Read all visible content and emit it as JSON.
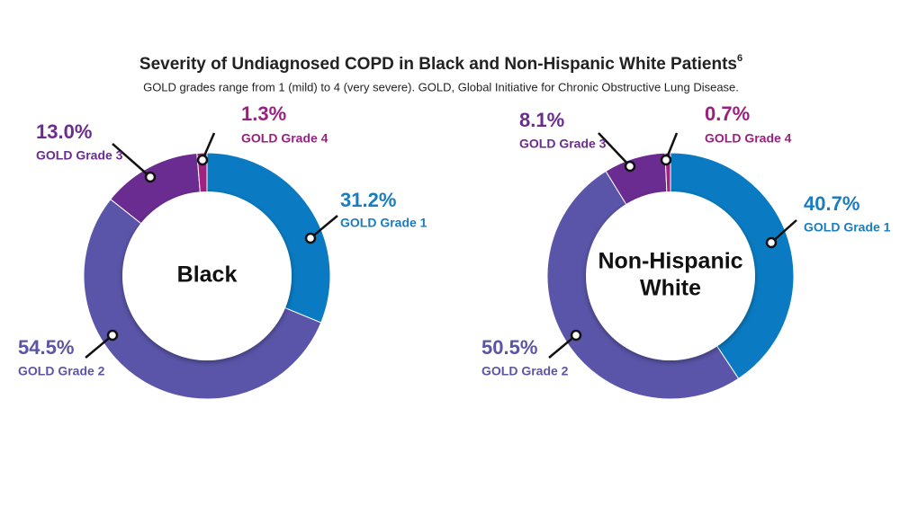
{
  "title": "Severity of Undiagnosed COPD in Black and Non-Hispanic White Patients",
  "title_superscript": "6",
  "subtitle": "GOLD grades range from 1 (mild) to 4 (very severe). GOLD, Global Initiative for Chronic Obstructive Lung Disease.",
  "chart_data": [
    {
      "type": "donut",
      "center_label": [
        "Black"
      ],
      "categories": [
        "GOLD Grade 1",
        "GOLD Grade 2",
        "GOLD Grade 3",
        "GOLD Grade 4"
      ],
      "values": [
        31.2,
        54.5,
        13.0,
        1.3
      ],
      "value_labels": [
        "31.2%",
        "54.5%",
        "13.0%",
        "1.3%"
      ],
      "colors": [
        "#0a7bc2",
        "#5a55a8",
        "#6b2c91",
        "#a0237f"
      ]
    },
    {
      "type": "donut",
      "center_label": [
        "Non-Hispanic",
        "White"
      ],
      "categories": [
        "GOLD Grade 1",
        "GOLD Grade 2",
        "GOLD Grade 3",
        "GOLD Grade 4"
      ],
      "values": [
        40.7,
        50.5,
        8.1,
        0.7
      ],
      "value_labels": [
        "40.7%",
        "50.5%",
        "8.1%",
        "0.7%"
      ],
      "colors": [
        "#0a7bc2",
        "#5a55a8",
        "#6b2c91",
        "#a0237f"
      ]
    }
  ]
}
